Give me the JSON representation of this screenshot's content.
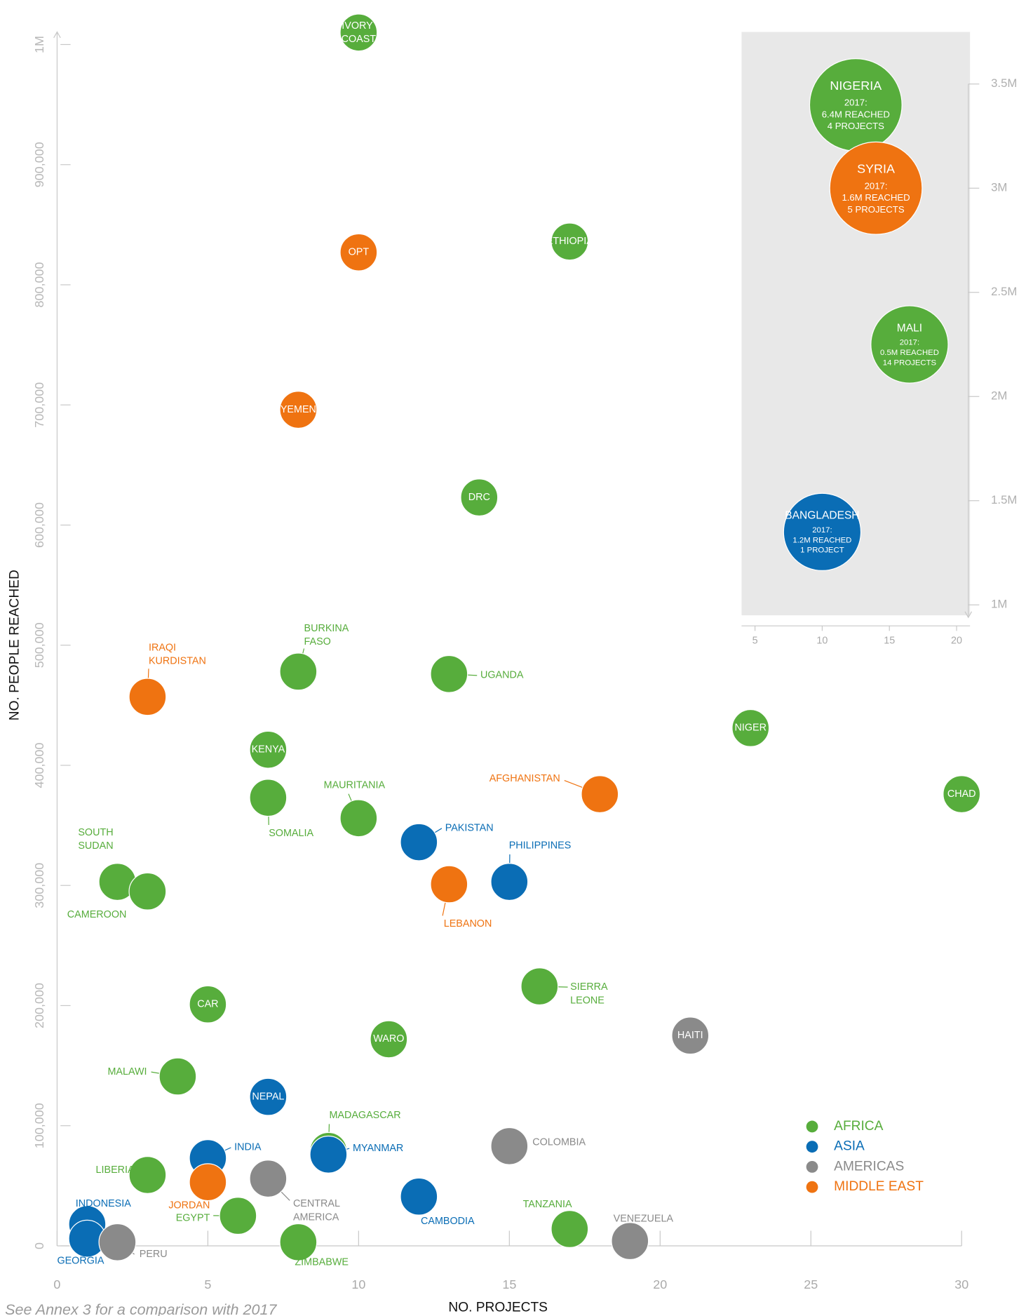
{
  "chart_data": [
    {
      "type": "scatter",
      "xlabel": "NO. PROJECTS",
      "ylabel": "NO. PEOPLE REACHED",
      "xlim": [
        0,
        30
      ],
      "xticks": [
        0,
        5,
        10,
        15,
        20,
        25,
        30
      ],
      "ylim": [
        0,
        1000000
      ],
      "yticks": [
        0,
        {
          "value": 100000,
          "label": "100,000"
        },
        {
          "value": 200000,
          "label": "200,000"
        },
        {
          "value": 300000,
          "label": "300,000"
        },
        {
          "value": 400000,
          "label": "400,000"
        },
        {
          "value": 500000,
          "label": "500,000"
        },
        {
          "value": 600000,
          "label": "600,000"
        },
        {
          "value": 700000,
          "label": "700,000"
        },
        {
          "value": 800000,
          "label": "800,000"
        },
        {
          "value": 900000,
          "label": "900,000"
        },
        {
          "value": 1000000,
          "label": "1M"
        }
      ],
      "legend": "bottom-right",
      "series": [
        {
          "name": "AFRICA",
          "color": "#57ad3c",
          "x": [
            10,
            17,
            14,
            8,
            13,
            23,
            7,
            7,
            30,
            10,
            2,
            3,
            16,
            5,
            11,
            4,
            9,
            3,
            6,
            17,
            8
          ],
          "values": [
            1010000,
            836000,
            623000,
            478000,
            476000,
            431000,
            413000,
            373000,
            376000,
            356000,
            303000,
            295000,
            216000,
            201000,
            172000,
            141000,
            79000,
            59000,
            25000,
            14000,
            3000
          ],
          "labels": [
            "IVORY COAST",
            "ETHIOPIA",
            "DRC",
            "BURKINA FASO",
            "UGANDA",
            "NIGER",
            "KENYA",
            "SOMALIA",
            "CHAD",
            "MAURITANIA",
            "SOUTH SUDAN",
            "CAMEROON",
            "SIERRA LEONE",
            "CAR",
            "WARO",
            "MALAWI",
            "MADAGASCAR",
            "LIBERIA",
            "EGYPT",
            "TANZANIA",
            "ZIMBABWE"
          ]
        },
        {
          "name": "ASIA",
          "color": "#0a6db5",
          "x": [
            12,
            15,
            7,
            9,
            5,
            12,
            1,
            1
          ],
          "values": [
            336000,
            303000,
            124000,
            76000,
            73000,
            41000,
            18000,
            6000
          ],
          "labels": [
            "PAKISTAN",
            "PHILIPPINES",
            "NEPAL",
            "MYANMAR",
            "INDIA",
            "CAMBODIA",
            "INDONESIA",
            "GEORGIA"
          ]
        },
        {
          "name": "AMERICAS",
          "color": "#8a8a8a",
          "x": [
            21,
            15,
            7,
            2,
            19
          ],
          "values": [
            175000,
            83000,
            56000,
            3000,
            4000
          ],
          "labels": [
            "HAITI",
            "COLOMBIA",
            "CENTRAL AMERICA",
            "PERU",
            "VENEZUELA"
          ]
        },
        {
          "name": "MIDDLE EAST",
          "color": "#ef7311",
          "x": [
            10,
            8,
            3,
            18,
            13,
            5
          ],
          "values": [
            827000,
            696000,
            457000,
            376000,
            301000,
            53000
          ],
          "labels": [
            "OPT",
            "YEMEN",
            "IRAQI KURDISTAN",
            "AFGHANISTAN",
            "LEBANON",
            "JORDAN"
          ]
        }
      ]
    },
    {
      "type": "scatter",
      "xlim": [
        4,
        21
      ],
      "xticks": [
        5,
        10,
        15,
        20
      ],
      "ylim": [
        950000,
        3750000
      ],
      "yticks": [
        {
          "value": 1000000,
          "label": "1M"
        },
        {
          "value": 1500000,
          "label": "1.5M"
        },
        {
          "value": 2000000,
          "label": "2M"
        },
        {
          "value": 2500000,
          "label": "2.5M"
        },
        {
          "value": 3000000,
          "label": "3M"
        },
        {
          "value": 3500000,
          "label": "3.5M"
        }
      ],
      "series": [
        {
          "color": "#57ad3c",
          "x": [
            12.5,
            16.5
          ],
          "values": [
            3400000,
            2250000
          ],
          "labels": [
            "NIGERIA",
            "MALI"
          ],
          "notes": [
            [
              "2017:",
              "6.4M REACHED",
              "4 PROJECTS"
            ],
            [
              "2017:",
              "0.5M REACHED",
              "14 PROJECTS"
            ]
          ]
        },
        {
          "color": "#0a6db5",
          "x": [
            10
          ],
          "values": [
            1350000
          ],
          "labels": [
            "BANGLADESH"
          ],
          "notes": [
            [
              "2017:",
              "1.2M REACHED",
              "1 PROJECT"
            ]
          ]
        },
        {
          "color": "#ef7311",
          "x": [
            14
          ],
          "values": [
            3000000
          ],
          "labels": [
            "SYRIA"
          ],
          "notes": [
            [
              "2017:",
              "1.6M REACHED",
              "5 PROJECTS"
            ]
          ]
        }
      ]
    }
  ],
  "footnote": "See Annex 3 for a comparison with 2017"
}
